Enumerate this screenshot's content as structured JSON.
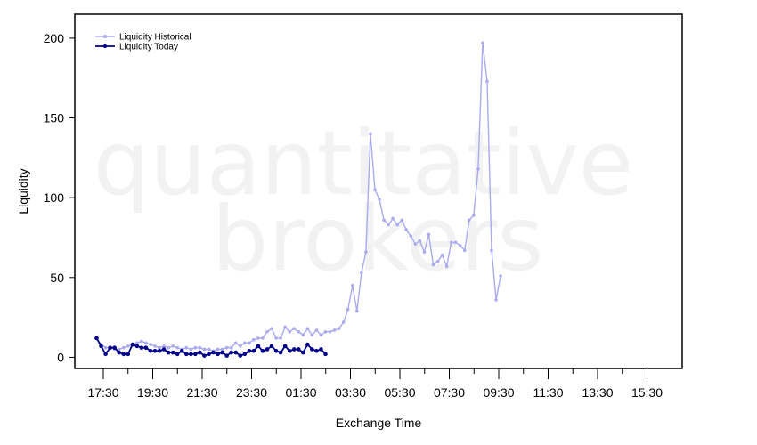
{
  "watermark": {
    "line1": "quantitative",
    "line2": "brokers"
  },
  "chart_data": {
    "type": "line",
    "xlabel": "Exchange Time",
    "ylabel": "Liquidity",
    "x_tick_labels": [
      "17:30",
      "19:30",
      "21:30",
      "23:30",
      "01:30",
      "03:30",
      "05:30",
      "07:30",
      "09:30",
      "11:30",
      "13:30",
      "15:30"
    ],
    "y_ticks": [
      0,
      50,
      100,
      150,
      200
    ],
    "ylim": [
      -7,
      215
    ],
    "legend_position": "top-left",
    "grid": false,
    "series": [
      {
        "name": "Liquidity Historical",
        "color": "#aaaaee",
        "values": [
          12,
          8,
          6,
          6,
          5,
          5,
          6,
          7,
          8,
          9,
          10,
          9,
          8,
          7,
          6,
          7,
          6,
          7,
          6,
          5,
          6,
          5,
          6,
          6,
          5,
          5,
          4,
          5,
          5,
          6,
          6,
          9,
          7,
          9,
          9,
          11,
          12,
          12,
          16,
          18,
          12,
          12,
          19,
          16,
          18,
          16,
          14,
          18,
          14,
          17,
          14,
          16,
          16,
          17,
          18,
          22,
          30,
          45,
          29,
          53,
          66,
          140,
          105,
          99,
          86,
          83,
          87,
          83,
          86,
          80,
          76,
          71,
          73,
          66,
          77,
          58,
          60,
          64,
          57,
          72,
          72,
          70,
          67,
          86,
          89,
          118,
          197,
          173,
          67,
          36,
          51
        ]
      },
      {
        "name": "Liquidity Today",
        "color": "#00008b",
        "values": [
          12,
          7,
          2,
          6,
          6,
          3,
          2,
          2,
          8,
          7,
          6,
          6,
          4,
          4,
          4,
          5,
          3,
          3,
          2,
          4,
          2,
          2,
          2,
          3,
          1,
          2,
          3,
          2,
          3,
          1,
          3,
          3,
          1,
          2,
          4,
          4,
          7,
          4,
          5,
          7,
          4,
          3,
          7,
          4,
          5,
          5,
          3,
          8,
          5,
          4,
          5,
          2
        ]
      }
    ]
  }
}
